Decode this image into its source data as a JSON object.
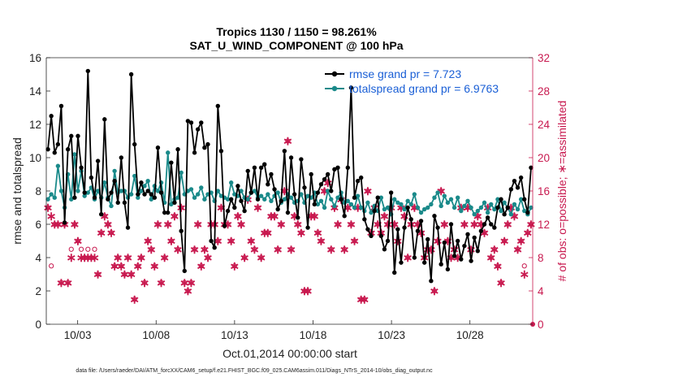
{
  "chart_data": {
    "type": "line",
    "title_line1": "Tropics 1130 / 1150 = 98.261%",
    "title_line2": "SAT_U_WIND_COMPONENT @ 100 hPa",
    "xlabel": "Oct.01,2014 00:00:00 start",
    "ylabel_left": "rmse and totalspread",
    "ylabel_right": "# of obs: o=possible; ∗=assimilated",
    "x_ticks": [
      "10/03",
      "10/08",
      "10/13",
      "10/18",
      "10/23",
      "10/28"
    ],
    "x_tick_days": [
      2,
      7,
      12,
      17,
      22,
      27
    ],
    "xlim_days": [
      0,
      31
    ],
    "ylim_left": [
      0,
      16
    ],
    "ylim_right": [
      0,
      32
    ],
    "left_ticks": [
      "0",
      "2",
      "4",
      "6",
      "8",
      "10",
      "12",
      "14",
      "16"
    ],
    "right_ticks": [
      "0",
      "4",
      "8",
      "12",
      "16",
      "20",
      "24",
      "28",
      "32"
    ],
    "footnote": "data file: /Users/raeder/DAI/ATM_forcXX/CAM6_setup/f.e21.FHIST_BGC.f09_025.CAM6assim.011/Diags_NTrS_2014-10/obs_diag_output.nc",
    "colors": {
      "rmse": "#000000",
      "spread": "#1a8a8a",
      "obs": "#c8194f",
      "legend_text": "#1a5fd6"
    },
    "series": [
      {
        "name": "rmse grand pr = 7.723",
        "key": "rmse",
        "values": [
          10.5,
          12.5,
          10.3,
          10.8,
          13.1,
          6.1,
          10.5,
          11.3,
          7.6,
          11.3,
          9.4,
          7.9,
          15.2,
          8.8,
          7.6,
          9.8,
          6.6,
          12.3,
          7.5,
          7.9,
          8.6,
          7.3,
          10.0,
          7.3,
          5.8,
          15.0,
          10.8,
          7.8,
          8.5,
          7.8,
          8.0,
          7.8,
          7.6,
          10.6,
          7.9,
          6.7,
          6.7,
          9.7,
          7.3,
          10.5,
          5.6,
          3.2,
          12.2,
          12.1,
          10.3,
          11.7,
          12.1,
          10.6,
          10.8,
          5.0,
          4.6,
          13.1,
          10.4,
          5.9,
          6.8,
          7.5,
          7.0,
          8.3,
          7.4,
          6.8,
          9.2,
          7.9,
          9.4,
          7.5,
          9.4,
          9.6,
          8.4,
          9.0,
          8.1,
          6.9,
          7.4,
          10.4,
          6.7,
          10.0,
          7.8,
          6.4,
          9.9,
          8.2,
          5.8,
          9.0,
          7.2,
          7.9,
          8.4,
          8.7,
          9.0,
          8.0,
          9.3,
          9.4,
          7.5,
          6.5,
          9.4,
          14.2,
          7.6,
          8.6,
          8.8,
          6.3,
          5.7,
          5.3,
          6.8,
          7.6,
          5.3,
          4.5,
          5.0,
          7.9,
          3.1,
          5.7,
          3.7,
          5.8,
          7.0,
          6.3,
          4.0,
          5.6,
          6.2,
          3.7,
          5.1,
          2.6,
          6.5,
          5.8,
          3.6,
          4.9,
          3.3,
          6.0,
          4.1,
          5.0,
          3.9,
          4.7,
          5.4,
          3.8,
          5.2,
          4.4,
          5.6,
          6.0,
          6.4,
          6.0,
          5.8,
          7.0,
          7.5,
          6.6,
          7.0,
          8.1,
          8.6,
          8.2,
          8.8,
          7.5,
          6.7,
          9.4
        ],
        "marker": "filled-circle"
      },
      {
        "name": "totalspread grand pr = 6.9763",
        "key": "spread",
        "values": [
          7.5,
          7.8,
          7.6,
          9.5,
          8.0,
          7.0,
          9.0,
          7.5,
          10.2,
          8.0,
          9.2,
          7.7,
          7.9,
          8.2,
          7.5,
          8.0,
          7.6,
          8.5,
          7.6,
          7.1,
          9.2,
          7.9,
          8.0,
          8.0,
          7.6,
          7.8,
          8.9,
          7.6,
          8.0,
          8.3,
          8.6,
          7.5,
          8.3,
          8.0,
          8.5,
          7.3,
          10.3,
          7.2,
          7.5,
          7.6,
          9.1,
          7.8,
          8.0,
          8.1,
          7.6,
          7.8,
          8.2,
          7.5,
          7.8,
          7.9,
          7.4,
          8.0,
          7.7,
          7.6,
          7.5,
          8.5,
          7.8,
          7.7,
          8.0,
          7.6,
          7.5,
          7.9,
          8.0,
          7.6,
          7.7,
          7.5,
          7.8,
          7.4,
          7.7,
          7.9,
          7.3,
          7.5,
          7.8,
          7.6,
          7.3,
          7.4,
          7.8,
          7.3,
          7.7,
          7.6,
          7.9,
          7.2,
          7.4,
          7.0,
          8.0,
          7.5,
          7.1,
          7.6,
          7.9,
          7.3,
          7.4,
          7.2,
          7.0,
          7.7,
          7.0,
          6.8,
          7.3,
          6.7,
          7.1,
          6.8,
          7.6,
          6.9,
          7.0,
          6.6,
          7.5,
          7.3,
          7.2,
          6.9,
          7.4,
          7.2,
          7.8,
          7.0,
          6.7,
          6.9,
          7.0,
          7.2,
          7.6,
          7.9,
          7.1,
          7.7,
          7.3,
          7.5,
          7.0,
          7.6,
          6.8,
          7.1,
          7.4,
          7.0,
          6.6,
          6.8,
          7.0,
          7.3,
          6.7,
          7.2,
          6.9,
          7.5,
          6.8,
          7.3,
          7.0,
          6.6,
          7.2,
          6.9,
          7.5,
          6.8,
          6.6,
          7.0
        ],
        "marker": "filled-circle"
      },
      {
        "name": "obs assimilated",
        "key": "obs_assim",
        "values": [
          14,
          13,
          12,
          12,
          5,
          12,
          5,
          8,
          12,
          10,
          8,
          8,
          8,
          8,
          8,
          6,
          11,
          13,
          12,
          11,
          7,
          8,
          7,
          6,
          8,
          6,
          3,
          7,
          8,
          5,
          10,
          9,
          7,
          12,
          5,
          8,
          12,
          10,
          13,
          9,
          14,
          5,
          4,
          5,
          9,
          12,
          7,
          9,
          8,
          12,
          12,
          10,
          14,
          12,
          12,
          10,
          7,
          13,
          12,
          8,
          15,
          10,
          9,
          14,
          8,
          11,
          11,
          13,
          13,
          9,
          12,
          16,
          22,
          9,
          13,
          12,
          11,
          4,
          4,
          13,
          13,
          11,
          10,
          16,
          17,
          9,
          14,
          12,
          15,
          9,
          14,
          12,
          10,
          14,
          3,
          3,
          16,
          11,
          14,
          12,
          11,
          13,
          12,
          14,
          12,
          10,
          14,
          13,
          8,
          12,
          14,
          12,
          11,
          8,
          9,
          9,
          4,
          10,
          16,
          12,
          10,
          8,
          9,
          8,
          14,
          12,
          14,
          9,
          12,
          13,
          12,
          11,
          14,
          8,
          9,
          7,
          5,
          10,
          12,
          14,
          13,
          9,
          10,
          6,
          11,
          12
        ],
        "marker": "asterisk"
      },
      {
        "name": "obs possible",
        "key": "obs_poss",
        "values": [
          14,
          7,
          12,
          12,
          5,
          12,
          5,
          9,
          12,
          10,
          9,
          8,
          9,
          8,
          9,
          6,
          11,
          13,
          12,
          11,
          7,
          8,
          7,
          6,
          8,
          6,
          3,
          7,
          8,
          5,
          10,
          9,
          7,
          12,
          5,
          8,
          12,
          10,
          13,
          9,
          14,
          5,
          4,
          5,
          9,
          12,
          7,
          9,
          8,
          12,
          12,
          10,
          14,
          12,
          12,
          10,
          7,
          13,
          12,
          8,
          15,
          10,
          9,
          14,
          8,
          11,
          11,
          13,
          13,
          9,
          12,
          16,
          22,
          9,
          13,
          12,
          11,
          4,
          4,
          13,
          13,
          11,
          10,
          16,
          17,
          9,
          14,
          12,
          15,
          9,
          14,
          12,
          10,
          14,
          3,
          3,
          16,
          11,
          14,
          12,
          11,
          13,
          12,
          14,
          12,
          10,
          14,
          13,
          8,
          12,
          14,
          12,
          11,
          8,
          9,
          9,
          4,
          10,
          16,
          12,
          10,
          8,
          9,
          8,
          14,
          12,
          14,
          9,
          12,
          13,
          12,
          11,
          14,
          8,
          9,
          7,
          5,
          10,
          12,
          14,
          13,
          9,
          10,
          7,
          11,
          12
        ],
        "marker": "open-circle"
      }
    ],
    "legend": {
      "placement": "top-right",
      "entries": [
        "rmse grand pr = 7.723",
        "totalspread grand pr = 6.9763"
      ]
    }
  }
}
